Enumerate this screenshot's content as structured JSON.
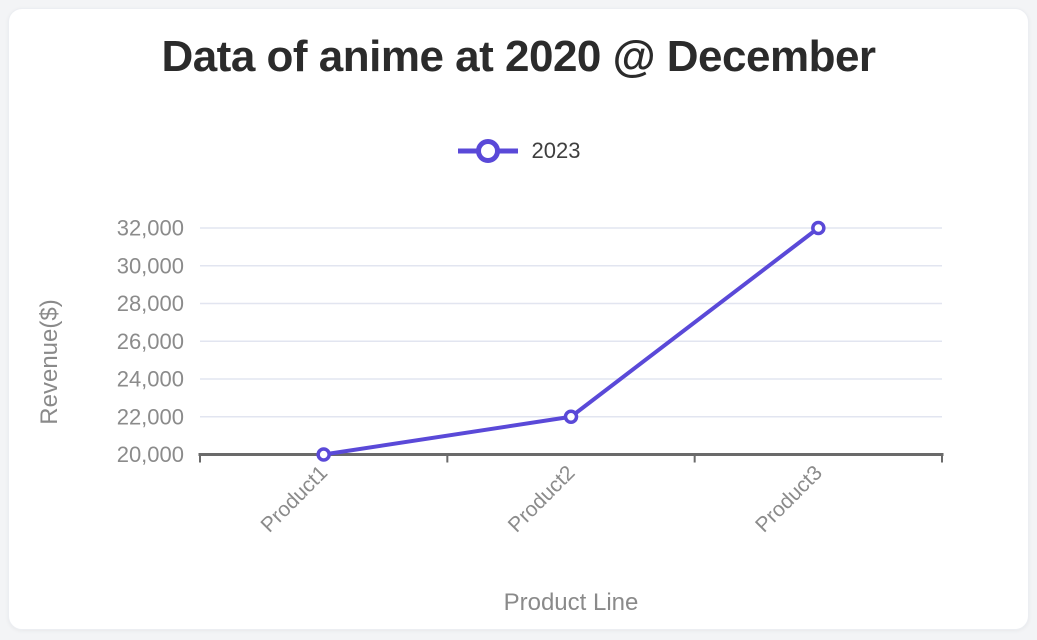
{
  "page": {
    "background": "#f3f4f6",
    "card_background": "#ffffff"
  },
  "chart_data": {
    "type": "line",
    "title": "Data of anime at 2020 @ December",
    "xlabel": "Product Line",
    "ylabel": "Revenue($)",
    "categories": [
      "Product1",
      "Product2",
      "Product3"
    ],
    "series": [
      {
        "name": "2023",
        "values": [
          20000,
          22000,
          32000
        ]
      }
    ],
    "ylim": [
      20000,
      32000
    ],
    "ytick_step": 2000,
    "ytick_labels": [
      "20,000",
      "22,000",
      "24,000",
      "26,000",
      "28,000",
      "30,000",
      "32,000"
    ],
    "grid": true,
    "legend_position": "top",
    "marker_style": "hollow-circle",
    "colors": {
      "line": "#5a49d8",
      "marker_fill": "#ffffff",
      "grid": "#e2e5f0",
      "axis": "#6a6a6a",
      "tick_text": "#8b8b8b",
      "axis_title_text": "#8a8a8a",
      "title_text": "#2b2b2b",
      "legend_text": "#3f3f3f"
    }
  }
}
